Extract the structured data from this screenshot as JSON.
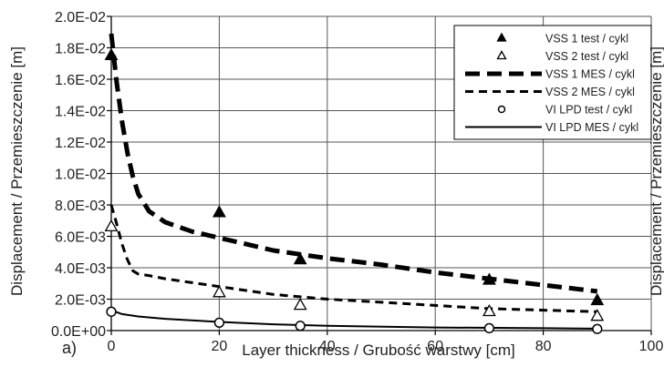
{
  "panel_label": "a)",
  "chart_data": {
    "type": "scatter",
    "title": "",
    "xlabel": "Layer thickness / Grubość warstwy [cm]",
    "ylabel": "Displacement / Przemieszczenie [m]",
    "right_ylabel": "Displacement / Przemieszczenie [m]",
    "xlim": [
      0,
      100
    ],
    "ylim": [
      0,
      0.02
    ],
    "x_ticks": [
      0,
      20,
      40,
      60,
      80,
      100
    ],
    "x_tick_labels": [
      "0",
      "20",
      "40",
      "60",
      "80",
      "100"
    ],
    "y_ticks": [
      0,
      0.002,
      0.004,
      0.006,
      0.008,
      0.01,
      0.012,
      0.014,
      0.016,
      0.018,
      0.02
    ],
    "y_tick_labels": [
      "0.0E+00",
      "2.0E-03",
      "4.0E-03",
      "6.0E-03",
      "8.0E-03",
      "1.0E-02",
      "1.2E-02",
      "1.4E-02",
      "1.6E-02",
      "1.8E-02",
      "2.0E-02"
    ],
    "grid": true,
    "legend_position": "top-right",
    "series": [
      {
        "name": "VSS 1 test / cykl",
        "kind": "points",
        "marker": "triangle-filled",
        "x": [
          0,
          20,
          35,
          70,
          90
        ],
        "y": [
          0.0175,
          0.0075,
          0.0045,
          0.0032,
          0.0019
        ]
      },
      {
        "name": "VSS 2 test / cykl",
        "kind": "points",
        "marker": "triangle-open",
        "x": [
          0,
          20,
          35,
          70,
          90
        ],
        "y": [
          0.0066,
          0.0024,
          0.0016,
          0.0012,
          0.0009
        ]
      },
      {
        "name": "VSS 1 MES / cykl",
        "kind": "line",
        "dash": "thick-dash",
        "x": [
          0,
          1,
          2,
          3,
          4,
          5,
          7,
          10,
          15,
          20,
          30,
          40,
          50,
          60,
          70,
          80,
          90
        ],
        "y": [
          0.0189,
          0.0158,
          0.0133,
          0.0113,
          0.0098,
          0.0087,
          0.0076,
          0.0069,
          0.0063,
          0.0059,
          0.0051,
          0.0046,
          0.0042,
          0.0037,
          0.0033,
          0.0029,
          0.0025
        ]
      },
      {
        "name": "VSS 2 MES / cykl",
        "kind": "line",
        "dash": "dash",
        "x": [
          0,
          1,
          2,
          3,
          4,
          5,
          7,
          10,
          20,
          30,
          40,
          50,
          60,
          70,
          80,
          90
        ],
        "y": [
          0.008,
          0.0068,
          0.0055,
          0.0045,
          0.0038,
          0.0036,
          0.0035,
          0.0033,
          0.0028,
          0.0023,
          0.002,
          0.0018,
          0.0016,
          0.0014,
          0.0013,
          0.0012
        ]
      },
      {
        "name": "VI LPD test / cykl",
        "kind": "points",
        "marker": "circle-open",
        "x": [
          0,
          20,
          35,
          70,
          90
        ],
        "y": [
          0.0012,
          0.0005,
          0.0003,
          0.00015,
          0.0001
        ]
      },
      {
        "name": "VI LPD MES / cykl",
        "kind": "line",
        "dash": "solid",
        "x": [
          0,
          2,
          5,
          10,
          20,
          30,
          40,
          60,
          80,
          90
        ],
        "y": [
          0.0013,
          0.00105,
          0.0009,
          0.00075,
          0.00055,
          0.0004,
          0.0003,
          0.0002,
          0.00015,
          0.00012
        ]
      }
    ]
  }
}
